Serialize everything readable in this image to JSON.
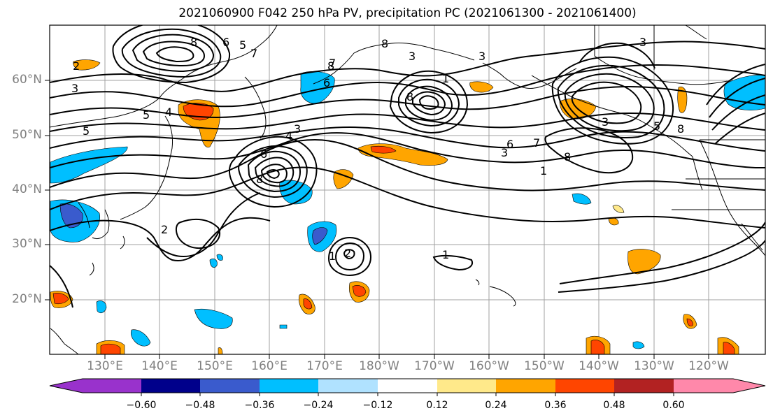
{
  "title": "2021060900 F042 250 hPa PV, precipitation PC (2021061300 - 2021061400)",
  "map": {
    "region": "North Pacific",
    "lat_labels": [
      "60°N",
      "50°N",
      "40°N",
      "30°N",
      "20°N"
    ],
    "lon_labels": [
      "130°E",
      "140°E",
      "150°E",
      "160°E",
      "170°E",
      "180°W",
      "170°W",
      "160°W",
      "150°W",
      "140°W",
      "130°W",
      "120°W"
    ],
    "contour_labels": [
      "8",
      "6",
      "5",
      "7",
      "2",
      "8",
      "3",
      "7",
      "3",
      "3",
      "8",
      "1",
      "6",
      "8",
      "3",
      "5",
      "4",
      "5",
      "3",
      "4",
      "8",
      "6",
      "2",
      "1",
      "7",
      "6",
      "8",
      "3",
      "1",
      "1",
      "2",
      "3",
      "5",
      "8"
    ]
  },
  "colorbar": {
    "colors": [
      "#9932cc",
      "#00008b",
      "#3a5bcd",
      "#00bfff",
      "#b0e2ff",
      "#ffffff",
      "#ffe98a",
      "#ffa500",
      "#ff4500",
      "#b22222",
      "#ff88aa"
    ],
    "tick_labels": [
      "−0.60",
      "−0.48",
      "−0.36",
      "−0.24",
      "−0.12",
      "0.12",
      "0.24",
      "0.36",
      "0.48",
      "0.60"
    ],
    "extend": "both"
  }
}
